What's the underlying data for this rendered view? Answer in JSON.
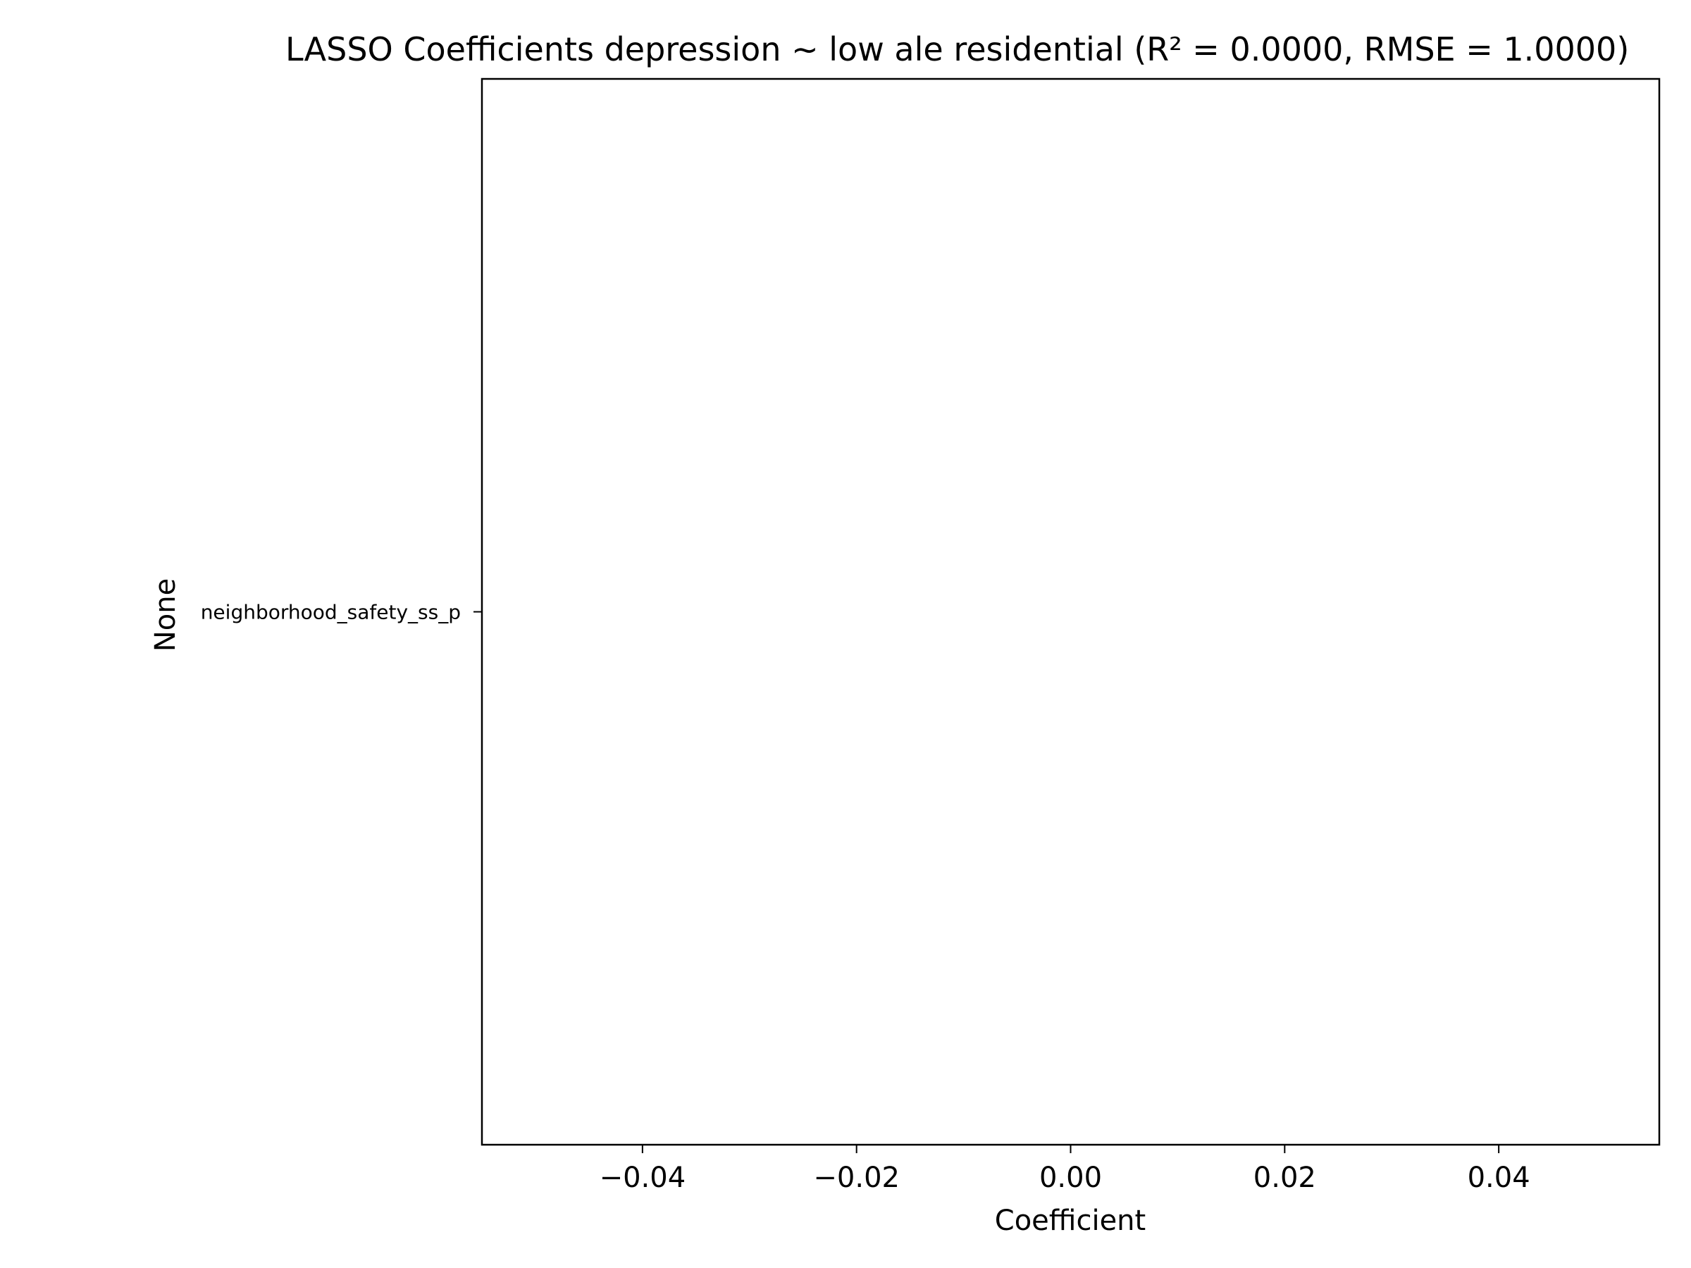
{
  "chart_data": {
    "type": "bar",
    "orientation": "horizontal",
    "title": "LASSO Coefficients depression ~ low ale residential (R² = 0.0000, RMSE = 1.0000)",
    "xlabel": "Coefficient",
    "ylabel": "None",
    "categories": [
      "neighborhood_safety_ss_p"
    ],
    "values": [
      0.0
    ],
    "xlim": [
      -0.055,
      0.055
    ],
    "xticks": [
      -0.04,
      -0.02,
      0.0,
      0.02,
      0.04
    ],
    "xtick_labels": [
      "−0.04",
      "−0.02",
      "0.00",
      "0.02",
      "0.04"
    ],
    "grid": false,
    "legend": "none",
    "colors": {
      "bar": "#1f77b4",
      "axes": "#000000",
      "background": "#ffffff"
    }
  }
}
